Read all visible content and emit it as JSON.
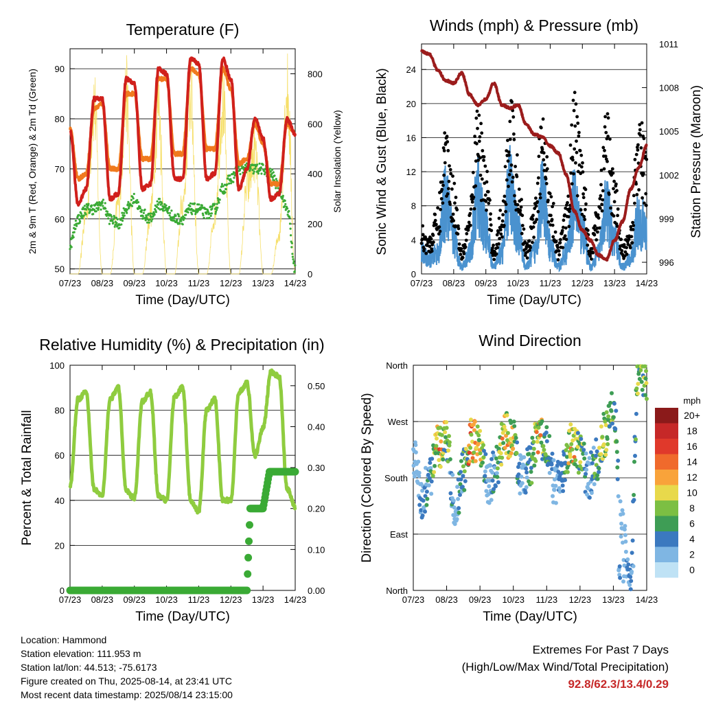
{
  "x_ticks": [
    "07/23",
    "08/23",
    "09/23",
    "10/23",
    "11/23",
    "12/23",
    "13/23",
    "14/23"
  ],
  "x_label": "Time (Day/UTC)",
  "colors": {
    "temp_2m": "#d0201c",
    "temp_9m": "#f07a1e",
    "dewpoint": "#3aaa35",
    "solar": "#f6df6a",
    "wind": "#4a92cf",
    "gust": "#000000",
    "pressure": "#9b1c1c",
    "rh": "#8fcc3f",
    "precip": "#3aaa35"
  },
  "info": {
    "location": "Location: Hammond",
    "elevation": "Station elevation: 111.953 m",
    "latlon": "Station lat/lon: 44.513; -75.6173",
    "created": "Figure created on Thu, 2025-08-14, at 23:41 UTC",
    "recent": "Most recent data timestamp: 2025/08/14 23:15:00"
  },
  "extremes": {
    "title": "Extremes For Past 7 Days",
    "subtitle": "(High/Low/Max Wind/Total Precipitation)",
    "values": "92.8/62.3/13.4/0.29"
  },
  "chart_data": [
    {
      "type": "line",
      "title": "Temperature (F)",
      "xlabel": "Time (Day/UTC)",
      "ylabel": "2m & 9m T (Red, Orange) & 2m Td (Green)",
      "ylabel_right": "Solar Insolation (Yellow)",
      "ylim": [
        49,
        94
      ],
      "yticks": [
        50,
        60,
        70,
        80,
        90
      ],
      "ylim_right": [
        0,
        900
      ],
      "yticks_right": [
        0,
        200,
        400,
        600,
        800
      ],
      "x": [
        0,
        0.25,
        0.5,
        0.75,
        1,
        1.25,
        1.5,
        1.75,
        2,
        2.25,
        2.5,
        2.75,
        3,
        3.25,
        3.5,
        3.75,
        4,
        4.25,
        4.5,
        4.75,
        5,
        5.25,
        5.5,
        5.75,
        6,
        6.25,
        6.5,
        6.75,
        7
      ],
      "series": [
        {
          "name": "2m T",
          "values": [
            78,
            63,
            66,
            84,
            84,
            64,
            65,
            88,
            87,
            66,
            67,
            90,
            89,
            68,
            68,
            92,
            91,
            68,
            69,
            92,
            88,
            66,
            70,
            80,
            76,
            64,
            65,
            80,
            77
          ]
        },
        {
          "name": "9m T",
          "values": [
            78,
            68,
            69,
            82,
            83,
            70,
            70,
            85,
            85,
            72,
            72,
            88,
            88,
            73,
            73,
            90,
            89,
            74,
            74,
            90,
            86,
            71,
            72,
            79,
            75,
            67,
            67,
            79,
            77
          ]
        },
        {
          "name": "2m Td",
          "values": [
            55,
            60,
            62,
            62,
            63,
            60,
            59,
            62,
            64,
            61,
            60,
            63,
            62,
            60,
            60,
            62,
            62,
            61,
            62,
            66,
            68,
            70,
            70,
            70,
            70,
            69,
            66,
            62,
            50
          ]
        },
        {
          "name": "Solar",
          "values": [
            0,
            0,
            300,
            850,
            0,
            0,
            350,
            880,
            0,
            0,
            300,
            830,
            0,
            0,
            350,
            900,
            0,
            0,
            300,
            860,
            0,
            0,
            420,
            600,
            0,
            0,
            200,
            900,
            0
          ]
        }
      ]
    },
    {
      "type": "line",
      "title": "Winds (mph) & Pressure (mb)",
      "xlabel": "Time (Day/UTC)",
      "ylabel": "Sonic Wind & Gust (Blue, Black)",
      "ylabel_right": "Station Pressure (Maroon)",
      "ylim": [
        0,
        27
      ],
      "yticks": [
        0,
        4,
        8,
        12,
        16,
        20,
        24
      ],
      "ylim_right": [
        995.2,
        1011
      ],
      "yticks_right": [
        996,
        999,
        1002,
        1005,
        1008,
        1011
      ],
      "x": [
        0,
        0.25,
        0.5,
        0.75,
        1,
        1.25,
        1.5,
        1.75,
        2,
        2.25,
        2.5,
        2.75,
        3,
        3.25,
        3.5,
        3.75,
        4,
        4.25,
        4.5,
        4.75,
        5,
        5.25,
        5.5,
        5.75,
        6,
        6.25,
        6.5,
        6.75,
        7
      ],
      "series": [
        {
          "name": "Wind",
          "values": [
            3,
            2,
            3,
            10,
            5,
            1,
            3,
            11,
            6,
            1,
            3,
            12,
            6,
            1,
            3,
            11,
            4,
            1,
            3,
            10,
            6,
            1,
            3,
            9,
            5,
            1,
            2,
            8,
            6
          ]
        },
        {
          "name": "Gust",
          "values": [
            5,
            4,
            7,
            16,
            10,
            3,
            7,
            18,
            12,
            3,
            7,
            19,
            12,
            3,
            7,
            17,
            10,
            3,
            7,
            19,
            12,
            3,
            8,
            18,
            10,
            3,
            5,
            17,
            13
          ]
        },
        {
          "name": "Pressure",
          "values": [
            1010.5,
            1010.3,
            1009.2,
            1008.5,
            1008.3,
            1009.0,
            1007.5,
            1006.8,
            1007.2,
            1008.3,
            1006.8,
            1006.6,
            1006.8,
            1005.5,
            1004.8,
            1004.6,
            1004.0,
            1003.5,
            1002.0,
            999.5,
            998.2,
            997.5,
            996.5,
            996.2,
            997.5,
            998.8,
            1001.0,
            1002.5,
            1004.0
          ]
        }
      ]
    },
    {
      "type": "line",
      "title": "Relative Humidity (%) & Precipitation (in)",
      "xlabel": "Time (Day/UTC)",
      "ylabel": "Percent & Total Rainfall",
      "ylim": [
        0,
        100
      ],
      "yticks": [
        0,
        20,
        40,
        60,
        80,
        100
      ],
      "ylim_right": [
        0,
        0.55
      ],
      "yticks_right": [
        "0.00",
        "0.10",
        "0.20",
        "0.30",
        "0.40",
        "0.50"
      ],
      "x": [
        0,
        0.25,
        0.5,
        0.75,
        1,
        1.25,
        1.5,
        1.75,
        2,
        2.25,
        2.5,
        2.75,
        3,
        3.25,
        3.5,
        3.75,
        4,
        4.25,
        4.5,
        4.75,
        5,
        5.25,
        5.5,
        5.75,
        6,
        6.25,
        6.5,
        6.75,
        7
      ],
      "series": [
        {
          "name": "RH",
          "values": [
            46,
            85,
            88,
            45,
            42,
            85,
            90,
            44,
            41,
            84,
            88,
            42,
            40,
            86,
            90,
            40,
            35,
            80,
            85,
            40,
            40,
            88,
            92,
            60,
            72,
            97,
            95,
            45,
            37
          ]
        },
        {
          "name": "Precip",
          "values": [
            0,
            0,
            0,
            0,
            0,
            0,
            0,
            0,
            0,
            0,
            0,
            0,
            0,
            0,
            0,
            0,
            0,
            0,
            0,
            0,
            0,
            0,
            0.2,
            0.2,
            0.21,
            0.29,
            0.29,
            0.29,
            0.29
          ]
        }
      ]
    },
    {
      "type": "scatter",
      "title": "Wind Direction",
      "xlabel": "Time (Day/UTC)",
      "ylabel": "Direction (Colored By Speed)",
      "ylim": [
        0,
        360
      ],
      "ytick_labels": [
        "North",
        "East",
        "South",
        "West",
        "North"
      ],
      "colorbar": {
        "unit": "mph",
        "labels": [
          "20+",
          "18",
          "16",
          "14",
          "12",
          "10",
          "8",
          "6",
          "4",
          "2",
          "0"
        ],
        "colors": [
          "#8b1a1a",
          "#c62828",
          "#e0392b",
          "#f06a2c",
          "#f9a33a",
          "#e8d94b",
          "#7cbf43",
          "#3e9d55",
          "#3b79bf",
          "#7fb6e3",
          "#bfe2f5"
        ]
      },
      "x": [
        0,
        0.25,
        0.5,
        0.75,
        1,
        1.25,
        1.5,
        1.75,
        2,
        2.25,
        2.5,
        2.75,
        3,
        3.25,
        3.5,
        3.75,
        4,
        4.25,
        4.5,
        4.75,
        5,
        5.25,
        5.5,
        5.75,
        6,
        6.25,
        6.5,
        6.75,
        7
      ],
      "series": [
        {
          "name": "Direction",
          "values": [
            220,
            150,
            180,
            230,
            240,
            130,
            190,
            240,
            230,
            170,
            200,
            250,
            240,
            180,
            200,
            250,
            230,
            170,
            190,
            240,
            220,
            180,
            210,
            250,
            300,
            110,
            20,
            350,
            340
          ]
        },
        {
          "name": "Speed",
          "values": [
            2,
            3,
            4,
            12,
            8,
            2,
            6,
            13,
            9,
            2,
            5,
            12,
            9,
            2,
            5,
            11,
            6,
            2,
            5,
            11,
            8,
            2,
            6,
            9,
            7,
            2,
            3,
            7,
            8
          ]
        }
      ]
    }
  ]
}
